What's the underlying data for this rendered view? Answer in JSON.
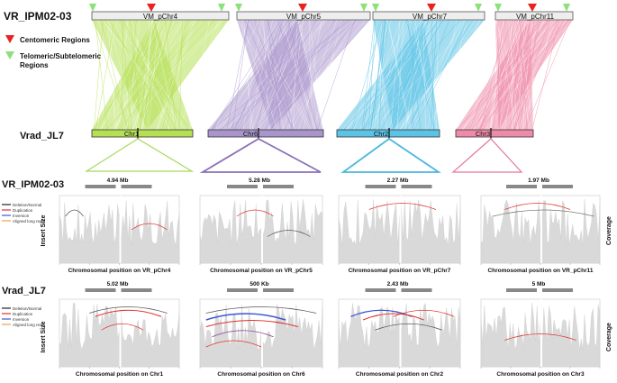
{
  "genomes": {
    "top": "VR_IPM02-03",
    "bottom": "Vrad_JL7"
  },
  "legend": {
    "centromeric": "Centomeric Regions",
    "telomeric_line1": "Telomeric/Subtelomeric",
    "telomeric_line2": "Regions"
  },
  "chromosomes": {
    "top": [
      "VM_pChr4",
      "VM_pChr5",
      "VM_pChr7",
      "VM_pChr11"
    ],
    "bottom": [
      "Chr1",
      "Chr6",
      "Chr2",
      "Chr3"
    ]
  },
  "colors": {
    "chr4": "#b5e053",
    "chr5": "#a995cc",
    "chr7": "#5bc3e6",
    "chr11": "#ef8aa8",
    "centromere": "#e8231f",
    "telomere": "#8de07a",
    "coverage": "#d9d9d9",
    "scale_bar": "#888888"
  },
  "section_labels": {
    "top": "VR_IPM02-03",
    "bottom": "Vrad_JL7"
  },
  "read_legend": [
    "Deletion/Normal",
    "Duplication",
    "Inversion",
    "Aligned long read"
  ],
  "read_legend_colors": [
    "#222222",
    "#e0312e",
    "#3a56d4",
    "#f0a24a"
  ],
  "axis_titles": {
    "insert_size": "Insert Size",
    "coverage": "Coverage"
  },
  "top_panels": [
    {
      "scale": "4.94 Mb",
      "xlabel": "Chromosomal position on VR_pChr4"
    },
    {
      "scale": "5.28 Mb",
      "xlabel": "Chromosomal position on VR_pChr5"
    },
    {
      "scale": "2.27 Mb",
      "xlabel": "Chromosomal position on VR_pChr7"
    },
    {
      "scale": "1.97 Mb",
      "xlabel": "Chromosomal position on VR_pChr11"
    }
  ],
  "bottom_panels": [
    {
      "scale": "5.02 Mb",
      "xlabel": "Chromosomal position on Chr1"
    },
    {
      "scale": "500 Kb",
      "xlabel": "Chromosomal position on Chr6"
    },
    {
      "scale": "2.43 Mb",
      "xlabel": "Chromosomal position on Chr2"
    },
    {
      "scale": "5 Mb",
      "xlabel": "Chromosomal position on Chr3"
    }
  ]
}
